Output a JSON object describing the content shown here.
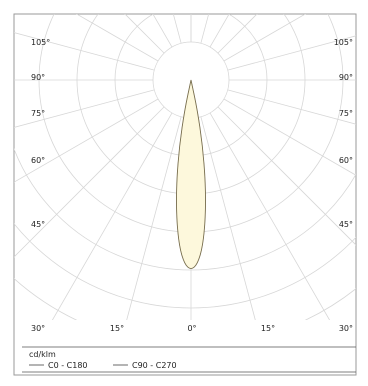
{
  "chart_data": {
    "type": "polar",
    "title": "",
    "unit_label": "cd/klm",
    "angle_labels_left": [
      "105°",
      "90°",
      "75°",
      "60°",
      "45°",
      "30°"
    ],
    "angle_labels_bottom": [
      "15°",
      "0°",
      "15°"
    ],
    "angle_labels_right": [
      "105°",
      "90°",
      "75°",
      "60°",
      "45°",
      "30°"
    ],
    "grid": true,
    "legend": {
      "position": "bottom-left",
      "entries": [
        "C0 - C180",
        "C90 - C270"
      ]
    },
    "series": [
      {
        "name": "C0 - C180",
        "angles_deg": [
          0,
          2,
          4,
          6,
          8,
          10,
          12,
          14
        ],
        "intensity_relative": [
          1.0,
          0.97,
          0.88,
          0.73,
          0.55,
          0.35,
          0.16,
          0.0
        ]
      },
      {
        "name": "C90 - C270",
        "angles_deg": [
          0,
          2,
          4,
          6,
          8,
          10,
          12,
          14
        ],
        "intensity_relative": [
          1.0,
          0.97,
          0.88,
          0.73,
          0.55,
          0.35,
          0.16,
          0.0
        ]
      }
    ],
    "colors": {
      "beam_fill": "#fdf8dc",
      "beam_stroke": "#7a7050",
      "grid": "#d7d7d7",
      "frame": "#9a9a9a",
      "text": "#222222"
    }
  }
}
